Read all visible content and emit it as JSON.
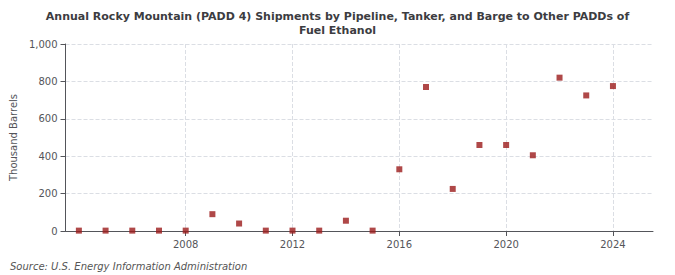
{
  "chart_data": {
    "type": "scatter",
    "title": "Annual Rocky Mountain (PADD 4) Shipments by Pipeline, Tanker, and Barge to Other PADDs of\nFuel Ethanol",
    "ylabel": "Thousand Barrels",
    "annotations": [
      "Source: U.S. Energy Information Administration"
    ],
    "x": [
      2004,
      2005,
      2006,
      2007,
      2008,
      2009,
      2010,
      2011,
      2012,
      2013,
      2014,
      2015,
      2016,
      2017,
      2018,
      2019,
      2020,
      2021,
      2022,
      2023,
      2024
    ],
    "values": [
      2,
      2,
      2,
      2,
      2,
      90,
      40,
      2,
      2,
      2,
      55,
      2,
      330,
      770,
      225,
      460,
      460,
      405,
      820,
      725,
      775
    ],
    "color": "#9b1a1a",
    "marker": "square",
    "xlim": [
      2003.5,
      2025.5
    ],
    "xticks": [
      2008,
      2012,
      2016,
      2020,
      2024
    ],
    "ylim": [
      0,
      1000
    ],
    "yticks": [
      0,
      200,
      400,
      600,
      800,
      {
        "value": 1000,
        "label": "1,000"
      }
    ],
    "grid": true
  }
}
